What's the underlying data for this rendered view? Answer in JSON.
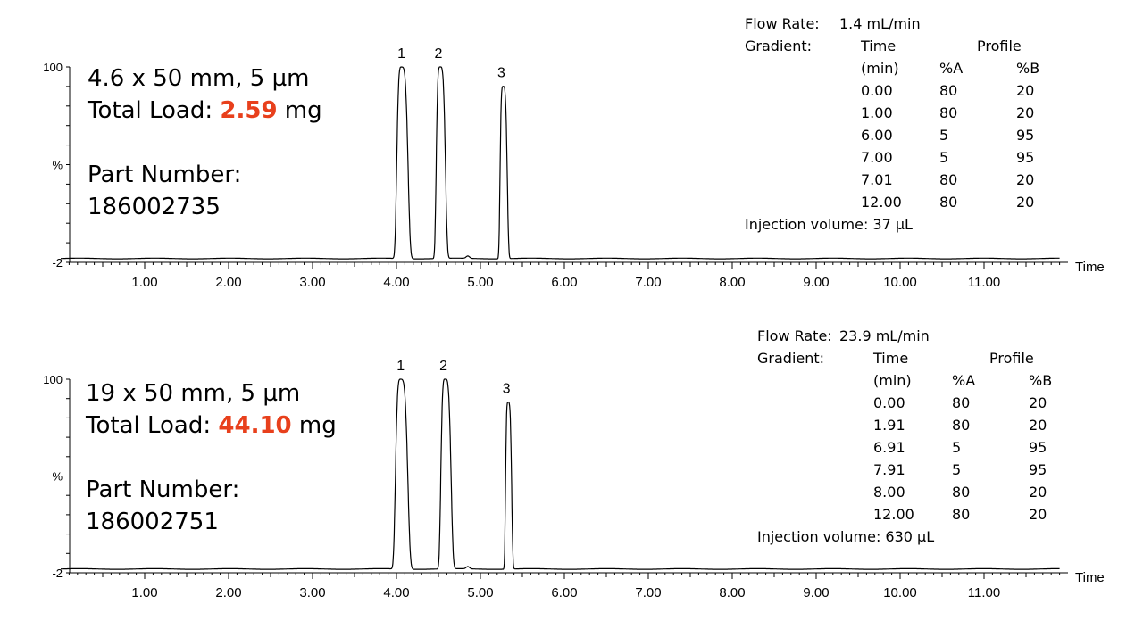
{
  "colors": {
    "highlight": "#e8401c",
    "trace": "#000000"
  },
  "axis": {
    "time_label": "Time",
    "y_top": "100",
    "y_mid": "%",
    "y_bottom": "-2"
  },
  "chart_data": [
    {
      "type": "line",
      "title": "",
      "xlabel": "Time",
      "ylabel": "%",
      "xlim": [
        0,
        12
      ],
      "ylim": [
        -2,
        100
      ],
      "x_ticks": [
        "1.00",
        "2.00",
        "3.00",
        "4.00",
        "5.00",
        "6.00",
        "7.00",
        "8.00",
        "9.00",
        "10.00",
        "11.00"
      ],
      "y_ticks": [
        "100",
        "%",
        "-2"
      ],
      "peak_labels": [
        "1",
        "2",
        "3"
      ],
      "peaks": [
        {
          "label": "1",
          "rt": 4.06,
          "height": 100
        },
        {
          "label": "2",
          "rt": 4.52,
          "height": 100
        },
        {
          "label": "3",
          "rt": 5.27,
          "height": 90
        }
      ],
      "grid": false
    },
    {
      "type": "line",
      "title": "",
      "xlabel": "Time",
      "ylabel": "%",
      "xlim": [
        0,
        12
      ],
      "ylim": [
        -2,
        100
      ],
      "x_ticks": [
        "1.00",
        "2.00",
        "3.00",
        "4.00",
        "5.00",
        "6.00",
        "7.00",
        "8.00",
        "9.00",
        "10.00",
        "11.00"
      ],
      "y_ticks": [
        "100",
        "%",
        "-2"
      ],
      "peak_labels": [
        "1",
        "2",
        "3"
      ],
      "peaks": [
        {
          "label": "1",
          "rt": 4.05,
          "height": 100
        },
        {
          "label": "2",
          "rt": 4.58,
          "height": 100
        },
        {
          "label": "3",
          "rt": 5.33,
          "height": 88
        }
      ],
      "grid": false
    }
  ],
  "panels": [
    {
      "column": "4.6 x 50 mm, 5 µm",
      "load_label": "Total Load: ",
      "load_value": "2.59",
      "load_unit": " mg",
      "part_label": "Part Number:",
      "part_number": "186002735",
      "flow_label": "Flow Rate:",
      "flow_value": "1.4 mL/min",
      "gradient_label": "Gradient:",
      "h_time": "Time",
      "h_profile": "Profile",
      "h_min": "(min)",
      "h_a": "%A",
      "h_b": "%B",
      "rows": [
        [
          "0.00",
          "80",
          "20"
        ],
        [
          "1.00",
          "80",
          "20"
        ],
        [
          "6.00",
          "5",
          "95"
        ],
        [
          "7.00",
          "5",
          "95"
        ],
        [
          "7.01",
          "80",
          "20"
        ],
        [
          "12.00",
          "80",
          "20"
        ]
      ],
      "injection": "Injection volume: 37 µL"
    },
    {
      "column": "19 x 50 mm, 5 µm",
      "load_label": "Total Load: ",
      "load_value": "44.10",
      "load_unit": " mg",
      "part_label": "Part Number:",
      "part_number": "186002751",
      "flow_label": "Flow Rate:",
      "flow_value": "23.9 mL/min",
      "gradient_label": "Gradient:",
      "h_time": "Time",
      "h_profile": "Profile",
      "h_min": "(min)",
      "h_a": "%A",
      "h_b": "%B",
      "rows": [
        [
          "0.00",
          "80",
          "20"
        ],
        [
          "1.91",
          "80",
          "20"
        ],
        [
          "6.91",
          "5",
          "95"
        ],
        [
          "7.91",
          "5",
          "95"
        ],
        [
          "8.00",
          "80",
          "20"
        ],
        [
          "12.00",
          "80",
          "20"
        ]
      ],
      "injection": "Injection volume: 630 µL"
    }
  ]
}
